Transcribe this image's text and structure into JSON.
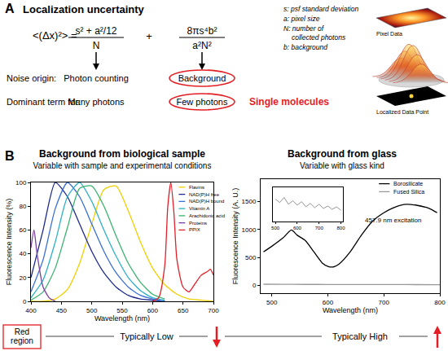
{
  "panel_a": {
    "label": "A",
    "title": "Localization uncertainty",
    "formula": {
      "lhs": "<(Δx)²> =",
      "term1": {
        "numerator": "s² + a²/12",
        "denominator": "N"
      },
      "plus": "+",
      "term2": {
        "numerator": "8πs⁴b²",
        "denominator": "a²N²"
      }
    },
    "symbols": [
      [
        "s: psf standard deviation"
      ],
      [
        "a: pixel size"
      ],
      [
        "N: number of",
        "collected photons"
      ],
      [
        "b: background"
      ]
    ],
    "rows": [
      {
        "label": "Noise origin:",
        "term1": "Photon counting",
        "term2": "Background"
      },
      {
        "label": "Dominant term for:",
        "term1": "Many photons",
        "term2": "Few photons"
      }
    ],
    "highlight": "Single molecules",
    "image_labels": [
      "Pixel Data",
      "Localized Data Point"
    ]
  },
  "panel_b": {
    "label": "B",
    "left": {
      "title": "Background from biological sample",
      "subtitle": "Variable with sample and experimental conditions"
    },
    "right": {
      "title": "Background from glass",
      "subtitle": "Variable with glass kind"
    }
  },
  "chart_data": [
    {
      "type": "line",
      "x_label": "Wavelength (nm)",
      "y_label": "Fluorescence Intensity (%)",
      "xlim": [
        400,
        700
      ],
      "xticks": [
        400,
        450,
        500,
        550,
        600,
        650,
        700
      ],
      "ylim": [
        0,
        100
      ],
      "yticks": [
        0,
        20,
        40,
        60,
        80,
        100
      ],
      "grid": false,
      "legend": "upper right",
      "line_style": "solid",
      "series": [
        {
          "name": "Flavins",
          "color": "#f2cf00",
          "x": [
            400,
            420,
            440,
            460,
            480,
            500,
            520,
            540,
            560,
            580,
            600,
            620,
            640,
            660,
            680,
            700
          ],
          "values": [
            0,
            0,
            2,
            10,
            32,
            65,
            94,
            97,
            76,
            50,
            28,
            14,
            6,
            2,
            1,
            0
          ]
        },
        {
          "name": "NAD(P)H free",
          "color": "#1f2a8c",
          "x": [
            400,
            420,
            440,
            460,
            480,
            500,
            520,
            540,
            560,
            580,
            600,
            620
          ],
          "values": [
            20,
            60,
            100,
            88,
            65,
            42,
            24,
            12,
            5,
            2,
            1,
            0
          ]
        },
        {
          "name": "NAD(P)H bound",
          "color": "#3a6fd8",
          "x": [
            400,
            420,
            440,
            460,
            480,
            500,
            520,
            540,
            560,
            580,
            600,
            620
          ],
          "values": [
            8,
            35,
            78,
            100,
            88,
            65,
            42,
            24,
            12,
            5,
            2,
            0
          ]
        },
        {
          "name": "Vitamin A",
          "color": "#2fb0c8",
          "x": [
            400,
            420,
            440,
            460,
            480,
            500,
            520,
            540,
            560,
            580,
            600,
            620
          ],
          "values": [
            3,
            18,
            50,
            88,
            100,
            84,
            60,
            38,
            20,
            9,
            3,
            1
          ]
        },
        {
          "name": "Arachidonic acid",
          "color": "#3cb371",
          "x": [
            400,
            420,
            440,
            460,
            480,
            500,
            520,
            540,
            560,
            580,
            600,
            620
          ],
          "values": [
            1,
            8,
            28,
            62,
            95,
            97,
            80,
            55,
            32,
            16,
            6,
            2
          ]
        },
        {
          "name": "Proteins",
          "color": "#7b3fa0",
          "x": [
            400,
            405,
            410,
            420,
            430,
            440
          ],
          "values": [
            45,
            60,
            40,
            12,
            3,
            0
          ]
        },
        {
          "name": "PPIX",
          "color": "#e0202a",
          "x": [
            600,
            610,
            620,
            625,
            630,
            635,
            640,
            650,
            660,
            670,
            680,
            690,
            695,
            700
          ],
          "values": [
            0,
            3,
            30,
            80,
            100,
            75,
            35,
            12,
            8,
            15,
            22,
            25,
            27,
            22
          ]
        }
      ]
    },
    {
      "type": "line",
      "x_label": "Wavelength (nm)",
      "y_label": "Fluorescence Intensity (A. U.)",
      "xlim": [
        480,
        800
      ],
      "xticks": [
        500,
        600,
        700,
        800
      ],
      "ylim": [
        -140,
        1900
      ],
      "yticks": [
        0,
        500,
        1000,
        1500
      ],
      "grid": false,
      "legend": "upper right",
      "line_style": "solid",
      "annotations": [
        "457.9 nm excitation"
      ],
      "series": [
        {
          "name": "Borosilicate",
          "color": "#000000",
          "x": [
            485,
            500,
            520,
            535,
            545,
            560,
            575,
            590,
            600,
            610,
            620,
            640,
            660,
            680,
            700,
            720,
            740,
            760,
            780,
            795
          ],
          "values": [
            600,
            700,
            850,
            990,
            900,
            800,
            600,
            400,
            340,
            330,
            380,
            600,
            900,
            1150,
            1300,
            1400,
            1450,
            1430,
            1380,
            1300
          ]
        },
        {
          "name": "Fused Silica",
          "color": "#999999",
          "x": [
            485,
            520,
            560,
            600,
            640,
            680,
            720,
            760,
            800
          ],
          "values": [
            20,
            18,
            17,
            16,
            15,
            14,
            14,
            13,
            12
          ]
        }
      ],
      "inset": {
        "xlim": [
          490,
          810
        ],
        "xticks": [
          500,
          600,
          700,
          800
        ],
        "ylim": [
          0,
          40
        ],
        "tick_labels": "x",
        "series": [
          {
            "color": "#888888",
            "x": [
              500,
              520,
              540,
              560,
              580,
              600,
              620,
              640,
              660,
              680,
              700,
              720,
              740,
              760,
              780,
              800
            ],
            "values": [
              26,
              22,
              28,
              20,
              24,
              19,
              23,
              17,
              21,
              16,
              20,
              15,
              18,
              14,
              17,
              13
            ]
          }
        ]
      }
    }
  ],
  "bottom": {
    "region": "Red region",
    "left": "Typically Low",
    "right": "Typically High"
  }
}
